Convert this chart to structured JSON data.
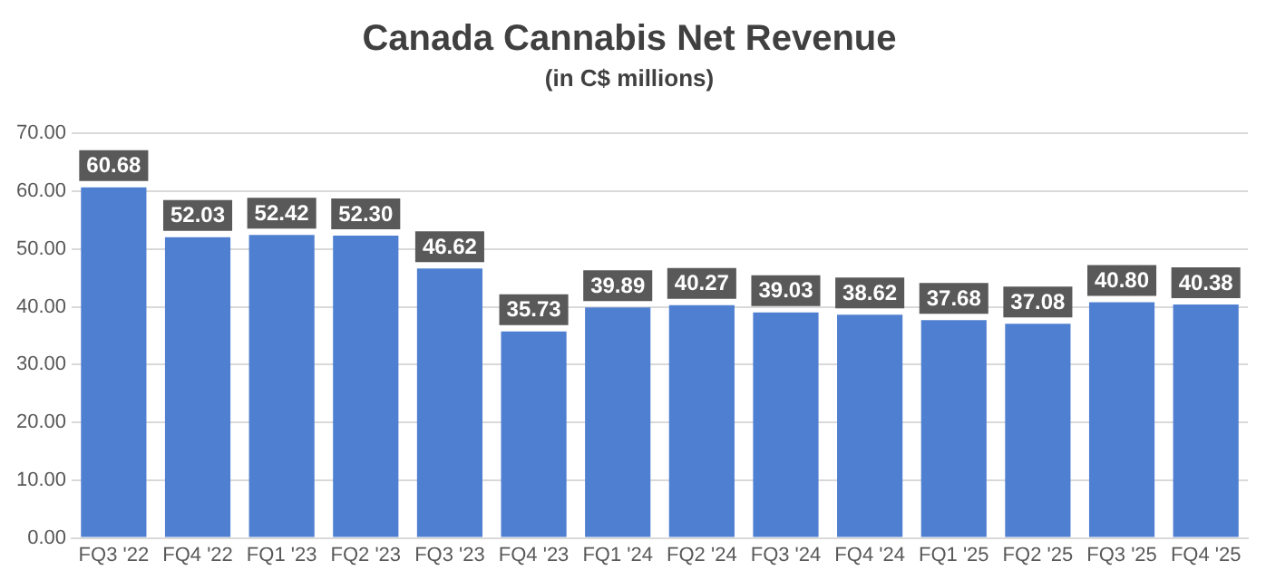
{
  "chart_data": {
    "type": "bar",
    "title": "Canada Cannabis Net Revenue",
    "subtitle": "(in C$ millions)",
    "categories": [
      "FQ3 '22",
      "FQ4 '22",
      "FQ1 '23",
      "FQ2 '23",
      "FQ3 '23",
      "FQ4 '23",
      "FQ1 '24",
      "FQ2 '24",
      "FQ3 '24",
      "FQ4 '24",
      "FQ1 '25",
      "FQ2 '25",
      "FQ3 '25",
      "FQ4 '25"
    ],
    "values": [
      60.68,
      52.03,
      52.42,
      52.3,
      46.62,
      35.73,
      39.89,
      40.27,
      39.03,
      38.62,
      37.68,
      37.08,
      40.8,
      40.38
    ],
    "value_labels": [
      "60.68",
      "52.03",
      "52.42",
      "52.30",
      "46.62",
      "35.73",
      "39.89",
      "40.27",
      "39.03",
      "38.62",
      "37.68",
      "37.08",
      "40.80",
      "40.38"
    ],
    "color": "#4f7fd0",
    "ylim": [
      0,
      70
    ],
    "yticks": [
      {
        "value": 0,
        "label": "0.00"
      },
      {
        "value": 10,
        "label": "10.00"
      },
      {
        "value": 20,
        "label": "20.00"
      },
      {
        "value": 30,
        "label": "30.00"
      },
      {
        "value": 40,
        "label": "40.00"
      },
      {
        "value": 50,
        "label": "50.00"
      },
      {
        "value": 60,
        "label": "60.00"
      },
      {
        "value": 70,
        "label": "70.00"
      }
    ],
    "grid": "y",
    "legend": false
  }
}
